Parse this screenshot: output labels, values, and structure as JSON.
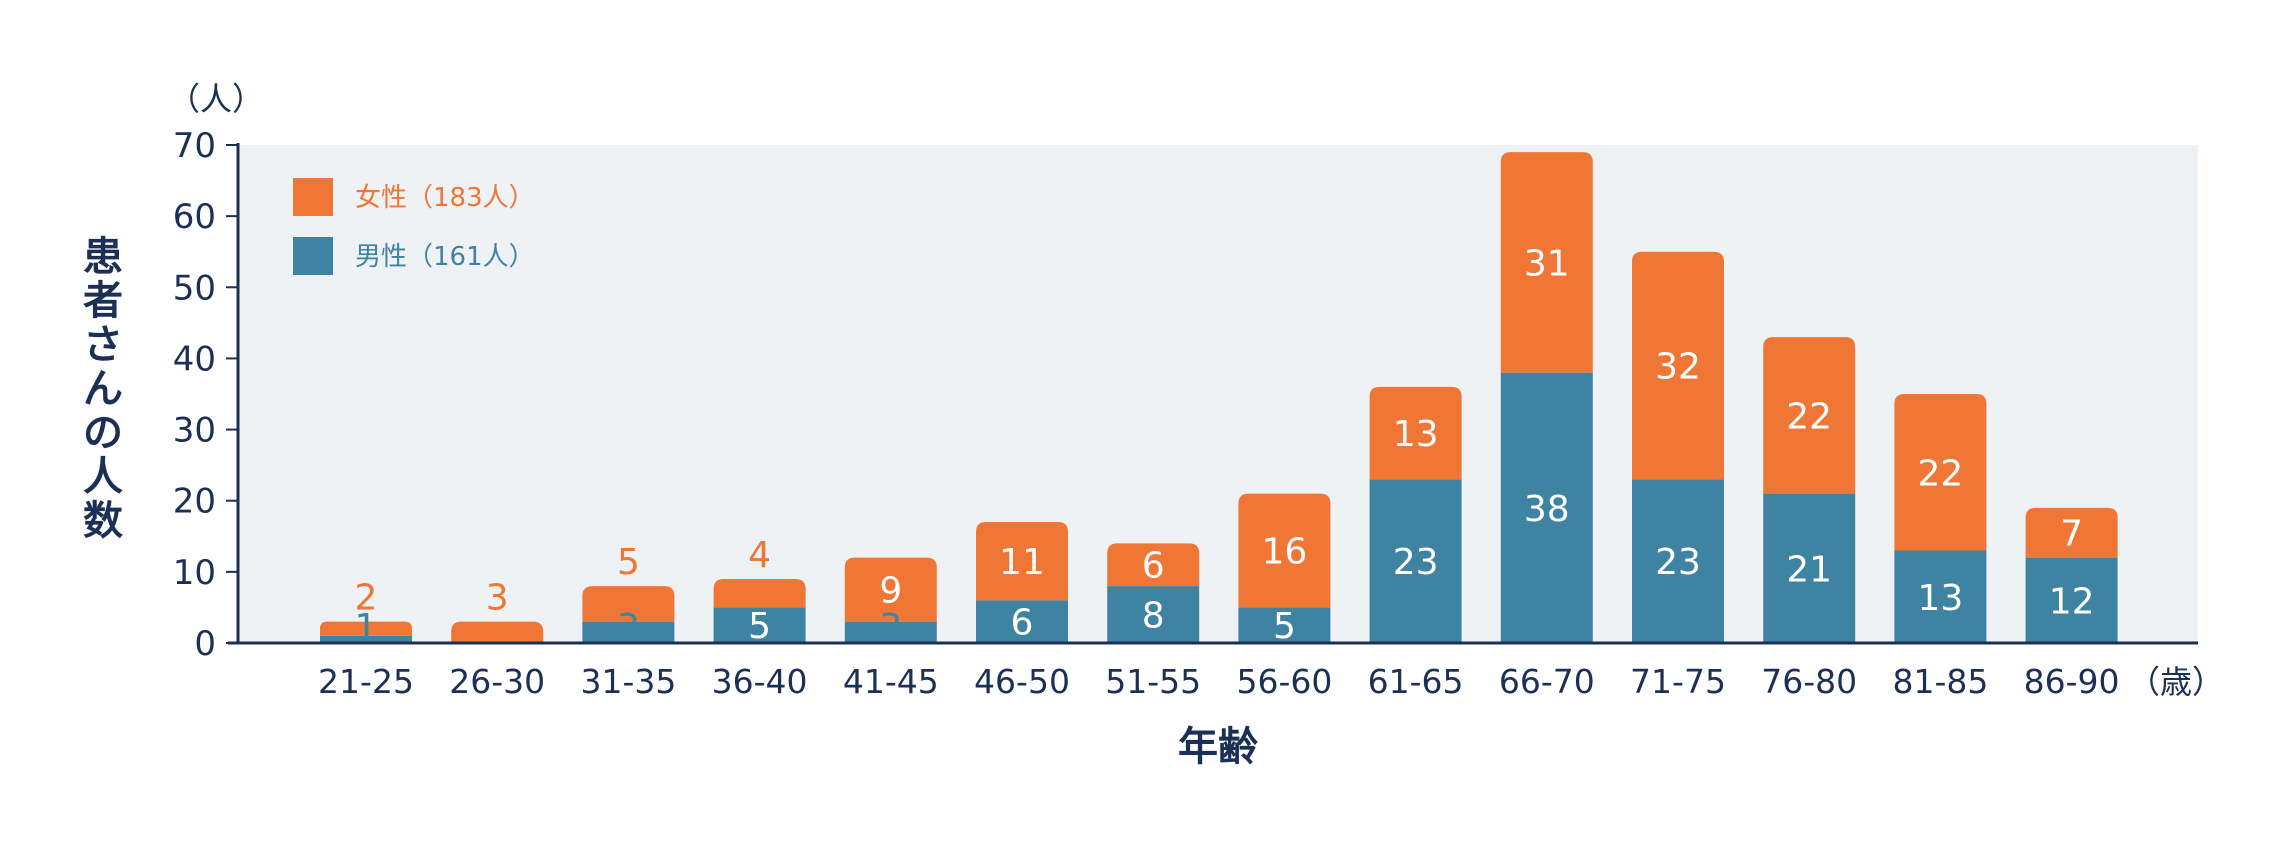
{
  "chart_data": {
    "type": "bar",
    "stacked": true,
    "categories": [
      "21-25",
      "26-30",
      "31-35",
      "36-40",
      "41-45",
      "46-50",
      "51-55",
      "56-60",
      "61-65",
      "66-70",
      "71-75",
      "76-80",
      "81-85",
      "86-90"
    ],
    "series": [
      {
        "name": "男性（161人）",
        "color": "#3f83a3",
        "values": [
          1,
          0,
          3,
          5,
          3,
          6,
          8,
          5,
          23,
          38,
          23,
          21,
          13,
          12
        ]
      },
      {
        "name": "女性（183人）",
        "color": "#ef7634",
        "values": [
          2,
          3,
          5,
          4,
          9,
          11,
          6,
          16,
          13,
          31,
          32,
          22,
          22,
          7
        ]
      }
    ],
    "xlabel": "年齢",
    "ylabel": "患者さんの人数",
    "y_unit": "（人）",
    "x_unit": "（歳）",
    "ylim": [
      0,
      70
    ],
    "yticks": [
      0,
      10,
      20,
      30,
      40,
      50,
      60,
      70
    ],
    "grid": false,
    "plot_background": "#eff2f5",
    "axis_color": "#1c2f55",
    "legend_position": "top-left"
  }
}
